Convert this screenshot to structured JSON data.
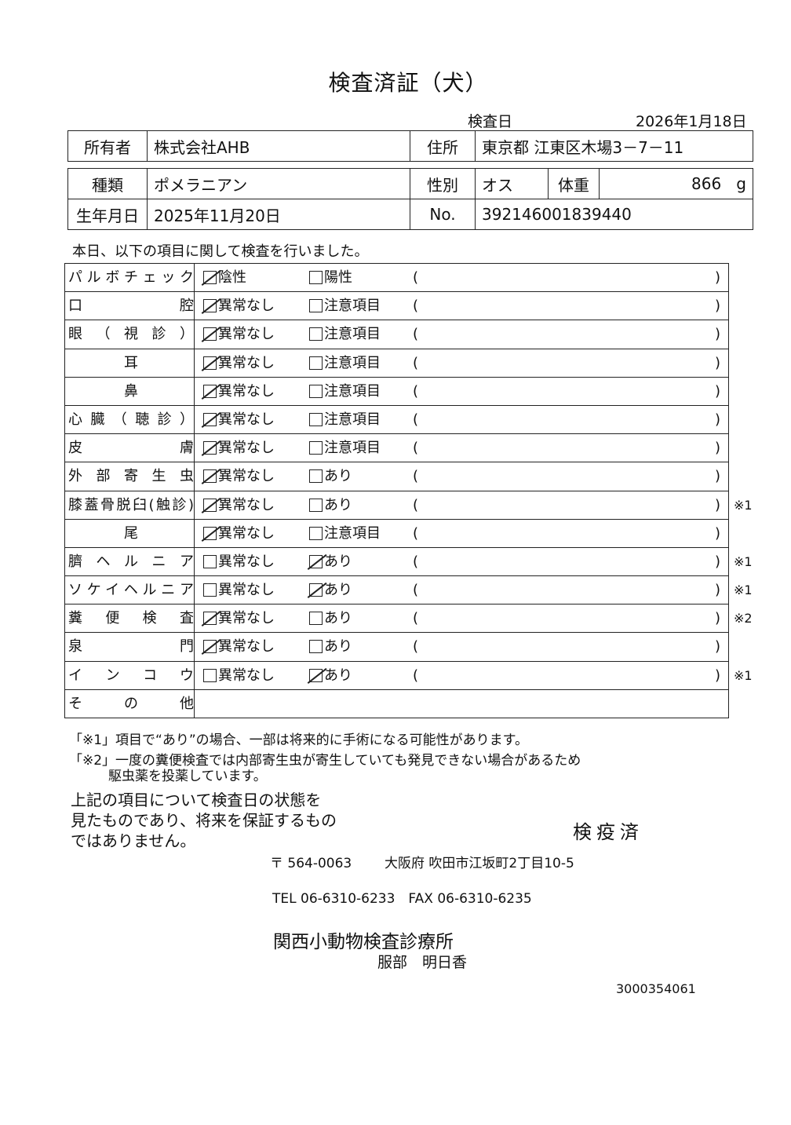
{
  "title": "検査済証（犬）",
  "exam_date": {
    "label": "検査日",
    "value": "2026年1月18日"
  },
  "owner": {
    "label": "所有者",
    "value": "株式会社AHB"
  },
  "address": {
    "label": "住所",
    "value": "東京都 江東区木場3－7－11"
  },
  "breed": {
    "label": "種類",
    "value": "ポメラニアン"
  },
  "sex": {
    "label": "性別",
    "value": "オス"
  },
  "weight": {
    "label": "体重",
    "value": "866",
    "unit": "g"
  },
  "birth": {
    "label": "生年月日",
    "value": "2025年11月20日"
  },
  "number": {
    "label": "No.",
    "value": "392146001839440"
  },
  "intro": "本日、以下の項目に関して検査を行いました。",
  "paren_open": "(",
  "paren_close": ")",
  "rows": [
    {
      "label": "パルボチェック",
      "align": "justify",
      "opt1": "陰性",
      "opt2": "陽性",
      "checked": 1,
      "note": ""
    },
    {
      "label": "口腔",
      "align": "justify",
      "opt1": "異常なし",
      "opt2": "注意項目",
      "checked": 1,
      "note": ""
    },
    {
      "label": "眼（視診）",
      "align": "justify",
      "opt1": "異常なし",
      "opt2": "注意項目",
      "checked": 1,
      "note": ""
    },
    {
      "label": "耳",
      "align": "center",
      "opt1": "異常なし",
      "opt2": "注意項目",
      "checked": 1,
      "note": ""
    },
    {
      "label": "鼻",
      "align": "center",
      "opt1": "異常なし",
      "opt2": "注意項目",
      "checked": 1,
      "note": ""
    },
    {
      "label": "心臓（聴診）",
      "align": "justify",
      "opt1": "異常なし",
      "opt2": "注意項目",
      "checked": 1,
      "note": ""
    },
    {
      "label": "皮膚",
      "align": "justify",
      "opt1": "異常なし",
      "opt2": "注意項目",
      "checked": 1,
      "note": ""
    },
    {
      "label": "外部寄生虫",
      "align": "justify",
      "opt1": "異常なし",
      "opt2": "あり",
      "checked": 1,
      "note": ""
    },
    {
      "label": "膝蓋骨脱臼(触診)",
      "align": "justify",
      "opt1": "異常なし",
      "opt2": "あり",
      "checked": 1,
      "note": "※1"
    },
    {
      "label": "尾",
      "align": "center",
      "opt1": "異常なし",
      "opt2": "注意項目",
      "checked": 1,
      "note": ""
    },
    {
      "label": "臍ヘルニア",
      "align": "justify",
      "opt1": "異常なし",
      "opt2": "あり",
      "checked": 2,
      "note": "※1"
    },
    {
      "label": "ソケイヘルニア",
      "align": "justify",
      "opt1": "異常なし",
      "opt2": "あり",
      "checked": 2,
      "note": "※1"
    },
    {
      "label": "糞便検査",
      "align": "justify",
      "opt1": "異常なし",
      "opt2": "あり",
      "checked": 1,
      "note": "※2"
    },
    {
      "label": "泉門",
      "align": "justify",
      "opt1": "異常なし",
      "opt2": "あり",
      "checked": 1,
      "note": ""
    },
    {
      "label": "インコウ",
      "align": "justify",
      "opt1": "異常なし",
      "opt2": "あり",
      "checked": 2,
      "note": "※1"
    }
  ],
  "other": {
    "label": "その他",
    "value": ""
  },
  "notes": {
    "n1": "「※1」項目で“あり”の場合、一部は将来的に手術になる可能性があります。",
    "n2": "「※2」一度の糞便検査では内部寄生虫が寄生していても発見できない場合があるため",
    "n2b": "駆虫薬を投薬しています。"
  },
  "disclaimer": [
    "上記の項目について検査日の状態を",
    "見たものであり、将来を保証するもの",
    "ではありません。"
  ],
  "stamp": "検疫済",
  "clinic": {
    "postal": "〒 564-0063",
    "address": "大阪府 吹田市江坂町2丁目10-5",
    "phone": "TEL 06-6310-6233　FAX 06-6310-6235",
    "name": "関西小動物検査診療所",
    "person": "服部　明日香"
  },
  "doc_id": "3000354061"
}
